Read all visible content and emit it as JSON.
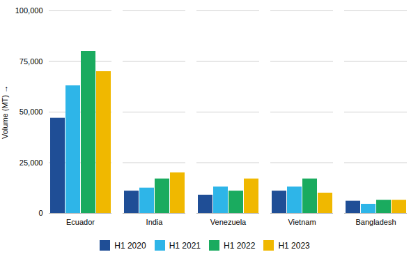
{
  "chart_data": {
    "type": "bar",
    "categories": [
      "Ecuador",
      "India",
      "Venezuela",
      "Vietnam",
      "Bangladesh"
    ],
    "series": [
      {
        "name": "H1 2020",
        "color": "#1F4E96",
        "values": [
          47000,
          11000,
          9000,
          11000,
          6000
        ]
      },
      {
        "name": "H1 2021",
        "color": "#2EB5E8",
        "values": [
          63000,
          12500,
          13000,
          13000,
          4500
        ]
      },
      {
        "name": "H1 2022",
        "color": "#1AAB5F",
        "values": [
          80000,
          17000,
          11000,
          17000,
          6500
        ]
      },
      {
        "name": "H1 2023",
        "color": "#F0B800",
        "values": [
          70000,
          20000,
          17000,
          10000,
          6500
        ]
      }
    ],
    "ylabel": "Volume (MT)",
    "ylim": [
      0,
      100000
    ],
    "yticks": [
      0,
      {
        "value": 25000,
        "label": "25,000"
      },
      {
        "value": 50000,
        "label": "50,000"
      },
      {
        "value": 75000,
        "label": "75,000"
      },
      {
        "value": 100000,
        "label": "100,000"
      }
    ],
    "grid": true,
    "legend": "bottom"
  }
}
